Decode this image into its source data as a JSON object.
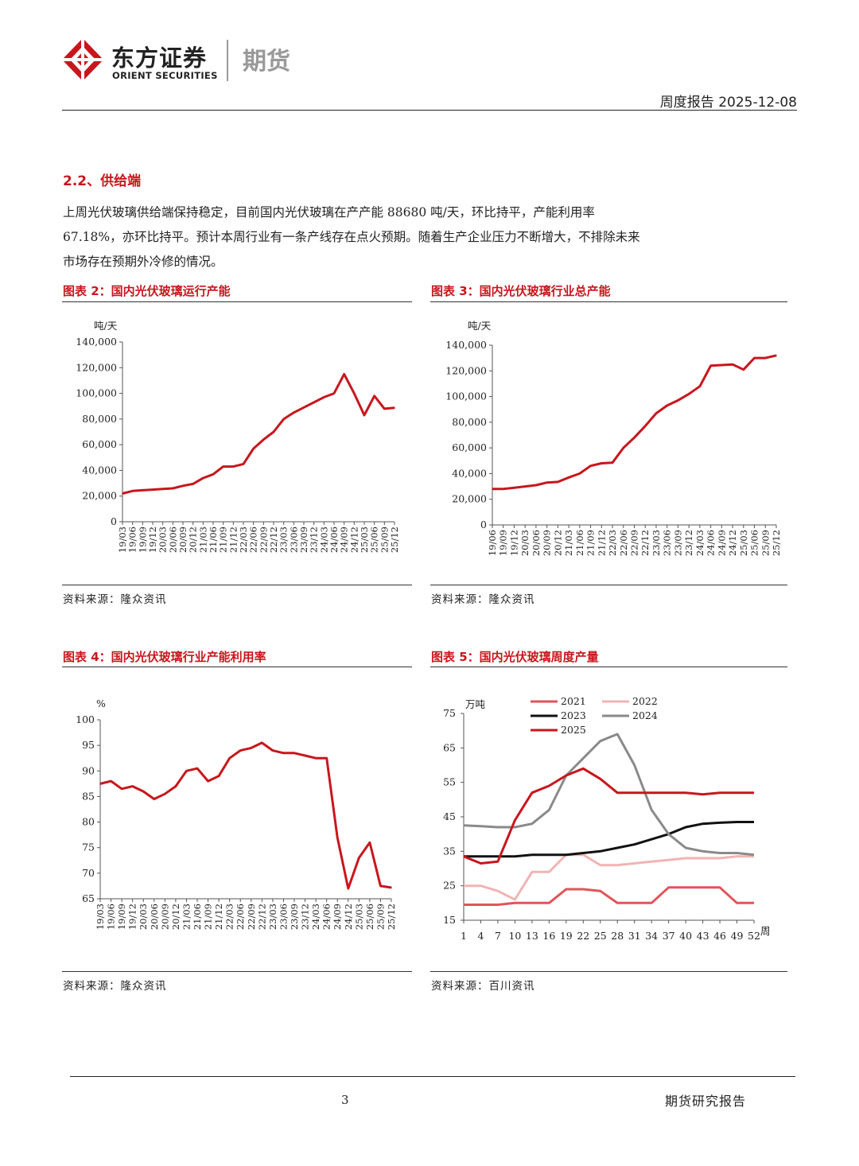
{
  "header": {
    "company_cn": "东方证券",
    "company_en": "ORIENT SECURITIES",
    "division": "期货",
    "report_type_date": "周度报告 2025-12-08"
  },
  "section": {
    "title": "2.2、供给端",
    "paragraph": "上周光伏玻璃供给端保持稳定，目前国内光伏玻璃在产产能 88680 吨/天，环比持平，产能利用率 67.18%，亦环比持平。预计本周行业有一条产线存在点火预期。随着生产企业压力不断增大，不排除未来市场存在预期外冷修的情况。"
  },
  "figures": [
    {
      "title": "图表 2：国内光伏玻璃运行产能",
      "source": "资料来源：隆众资讯"
    },
    {
      "title": "图表 3：国内光伏玻璃行业总产能",
      "source": "资料来源：隆众资讯"
    },
    {
      "title": "图表 4：国内光伏玻璃行业产能利用率",
      "source": "资料来源：隆众资讯"
    },
    {
      "title": "图表 5：国内光伏玻璃周度产量",
      "source": "资料来源：百川资讯"
    }
  ],
  "footer": {
    "page": "3",
    "label": "期货研究报告"
  },
  "colors": {
    "accent_red": "#c8161d",
    "c2021": "#e0545a",
    "c2022": "#f2b4b4",
    "c2023": "#111111",
    "c2024": "#8a8a8a",
    "c2025": "#c8161d"
  },
  "chart_data": [
    {
      "type": "line",
      "title": "国内光伏玻璃运行产能",
      "unit": "吨/天",
      "ylim": [
        0,
        140000
      ],
      "yticks": [
        "0",
        "20,000",
        "40,000",
        "60,000",
        "80,000",
        "100,000",
        "120,000",
        "140,000"
      ],
      "x": [
        "19/03",
        "19/06",
        "19/09",
        "19/12",
        "20/03",
        "20/06",
        "20/09",
        "20/12",
        "21/03",
        "21/06",
        "21/09",
        "21/12",
        "22/03",
        "22/06",
        "22/09",
        "22/12",
        "23/03",
        "23/06",
        "23/09",
        "23/12",
        "24/03",
        "24/06",
        "24/09",
        "24/12",
        "25/03",
        "25/06",
        "25/09",
        "25/12"
      ],
      "values": [
        22000,
        24000,
        24500,
        25000,
        25500,
        26000,
        28000,
        29500,
        34000,
        37000,
        43000,
        43000,
        45000,
        57000,
        64000,
        70000,
        80000,
        85000,
        89000,
        93000,
        97000,
        100000,
        115000,
        100000,
        83000,
        98000,
        88000,
        88680
      ]
    },
    {
      "type": "line",
      "title": "国内光伏玻璃行业总产能",
      "unit": "吨/天",
      "ylim": [
        0,
        140000
      ],
      "yticks": [
        "0",
        "20,000",
        "40,000",
        "60,000",
        "80,000",
        "100,000",
        "120,000",
        "140,000"
      ],
      "x": [
        "19/06",
        "19/09",
        "19/12",
        "20/03",
        "20/06",
        "20/09",
        "20/12",
        "21/03",
        "21/06",
        "21/09",
        "21/12",
        "22/03",
        "22/06",
        "22/09",
        "22/12",
        "23/03",
        "23/06",
        "23/09",
        "23/12",
        "24/03",
        "24/06",
        "24/09",
        "24/12",
        "25/03",
        "25/06",
        "25/09",
        "25/12"
      ],
      "values": [
        28000,
        28000,
        29000,
        30000,
        31000,
        33000,
        33500,
        37000,
        40000,
        46000,
        48000,
        48500,
        60000,
        68000,
        77000,
        87000,
        93000,
        97000,
        102000,
        108000,
        124000,
        124500,
        125000,
        121000,
        130000,
        130000,
        132000
      ]
    },
    {
      "type": "line",
      "title": "国内光伏玻璃行业产能利用率",
      "unit": "%",
      "ylim": [
        65,
        100
      ],
      "yticks": [
        "65",
        "70",
        "75",
        "80",
        "85",
        "90",
        "95",
        "100"
      ],
      "x": [
        "19/03",
        "19/06",
        "19/09",
        "19/12",
        "20/03",
        "20/06",
        "20/09",
        "20/12",
        "21/03",
        "21/06",
        "21/09",
        "21/12",
        "22/03",
        "22/06",
        "22/09",
        "22/12",
        "23/03",
        "23/06",
        "23/09",
        "23/12",
        "24/03",
        "24/06",
        "24/09",
        "24/12",
        "25/03",
        "25/06",
        "25/09",
        "25/12"
      ],
      "values": [
        87.5,
        88,
        86.5,
        87,
        86,
        84.5,
        85.5,
        87,
        90,
        90.5,
        88,
        89,
        92.5,
        94,
        94.5,
        95.5,
        94,
        93.5,
        93.5,
        93,
        92.5,
        92.5,
        77,
        67,
        73,
        76,
        67.5,
        67.18
      ]
    },
    {
      "type": "line",
      "title": "国内光伏玻璃周度产量",
      "unit": "万吨",
      "xlabel": "周",
      "ylim": [
        15,
        75
      ],
      "yticks": [
        "15",
        "25",
        "35",
        "45",
        "55",
        "65",
        "75"
      ],
      "xticks": [
        "1",
        "4",
        "7",
        "10",
        "13",
        "16",
        "19",
        "22",
        "25",
        "28",
        "31",
        "34",
        "37",
        "40",
        "43",
        "46",
        "49",
        "52"
      ],
      "weeks": [
        1,
        4,
        7,
        10,
        13,
        16,
        19,
        22,
        25,
        28,
        31,
        34,
        37,
        40,
        43,
        46,
        49,
        52
      ],
      "series": [
        {
          "name": "2021",
          "values": [
            19.5,
            19.5,
            19.5,
            20,
            20,
            20,
            24,
            24,
            23.5,
            20,
            20,
            20,
            24.5,
            24.5,
            24.5,
            24.5,
            20,
            20
          ]
        },
        {
          "name": "2022",
          "values": [
            25,
            25,
            23.5,
            21,
            29,
            29,
            34,
            34,
            31,
            31,
            31.5,
            32,
            32.5,
            33,
            33,
            33,
            33.5,
            33.5
          ]
        },
        {
          "name": "2023",
          "values": [
            33.5,
            33.5,
            33.5,
            33.5,
            34,
            34,
            34,
            34.5,
            35,
            36,
            37,
            38.5,
            40,
            42,
            43,
            43.3,
            43.5,
            43.5
          ]
        },
        {
          "name": "2024",
          "values": [
            42.5,
            42.3,
            42,
            42,
            43,
            47,
            57,
            62,
            67,
            69,
            60,
            47,
            40,
            36,
            35,
            34.5,
            34.5,
            34
          ]
        },
        {
          "name": "2025",
          "values": [
            33.5,
            31.5,
            32,
            44,
            52,
            54,
            57,
            59,
            56,
            52,
            52,
            52,
            52,
            52,
            51.5,
            52,
            52,
            52
          ]
        }
      ]
    }
  ]
}
